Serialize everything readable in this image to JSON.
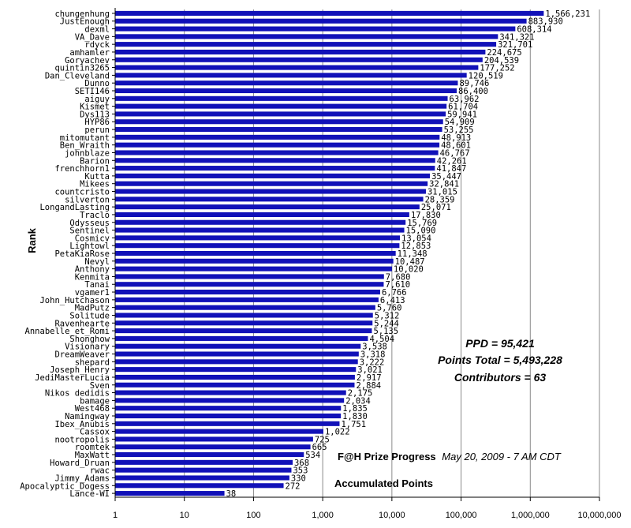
{
  "chart_data": {
    "type": "bar",
    "orientation": "horizontal",
    "xscale": "log",
    "xlim": [
      1,
      10000000
    ],
    "x_ticks": [
      "1",
      "10",
      "100",
      "1,000",
      "10,000",
      "100,000",
      "1,000,000",
      "10,000,000"
    ],
    "ylabel": "Rank",
    "xlabel": "Accumulated Points",
    "bar_color": "#1111b8",
    "grid": "vertical",
    "stats": {
      "ppd": "PPD = 95,421",
      "points_total": "Points Total = 5,493,228",
      "contributors": "Contributors = 63"
    },
    "caption_bold": "F@H Prize Progress",
    "caption_italic": "May 20, 2009 - 7 AM CDT",
    "categories": [
      "chungenhung",
      "JustEnough",
      "dexml",
      "VA_Dave",
      "rdyck",
      "amhamler",
      "Goryachev",
      "quintin3265",
      "Dan_Cleveland",
      "Dunno",
      "SETI146",
      "aiguy",
      "Kismet",
      "Dys113",
      "HYP86",
      "perun",
      "mitomutant",
      "Ben_Wraith",
      "johnblaze",
      "Barion",
      "frenchhorn1",
      "Kutta",
      "Mikees",
      "countcristo",
      "silverton",
      "LongandLasting",
      "Traclo",
      "Odysseus",
      "Sentinel",
      "Cosmicv",
      "Lightowl",
      "PetaKiaRose",
      "Nevyl",
      "Anthony",
      "Kenmita",
      "Tanai",
      "vgamer1",
      "John_Hutchason",
      "MadPutz",
      "Solitude",
      "Ravenhearte",
      "Annabelle_et_Romi",
      "Shonghow",
      "Visionary",
      "DreamWeaver",
      "shepard",
      "Joseph_Henry",
      "JediMasterLucia",
      "Sven",
      "Nikos dedidis",
      "bamage",
      "West468",
      "Namingway",
      "Ibex_Anubis",
      "Cassox",
      "nootropolis",
      "roomtek",
      "MaxWatt",
      "Howard_Druan",
      "rwac",
      "Jimmy_Adams",
      "Apocalyptic_Dogess",
      "Lance-WI"
    ],
    "values": [
      1566231,
      883930,
      608314,
      341321,
      321701,
      224675,
      204539,
      177252,
      120519,
      89746,
      86400,
      63962,
      61704,
      59941,
      54909,
      53255,
      48913,
      48601,
      46767,
      42261,
      41847,
      35447,
      32841,
      31015,
      28359,
      25071,
      17830,
      15769,
      15090,
      13054,
      12853,
      11348,
      10487,
      10020,
      7680,
      7610,
      6766,
      6413,
      5760,
      5312,
      5244,
      5135,
      4504,
      3538,
      3318,
      3222,
      3021,
      2917,
      2884,
      2175,
      2034,
      1835,
      1830,
      1751,
      1022,
      725,
      665,
      534,
      368,
      353,
      330,
      272,
      38
    ],
    "value_labels": [
      "1,566,231",
      "883,930",
      "608,314",
      "341,321",
      "321,701",
      "224,675",
      "204,539",
      "177,252",
      "120,519",
      "89,746",
      "86,400",
      "63,962",
      "61,704",
      "59,941",
      "54,909",
      "53,255",
      "48,913",
      "48,601",
      "46,767",
      "42,261",
      "41,847",
      "35,447",
      "32,841",
      "31,015",
      "28,359",
      "25,071",
      "17,830",
      "15,769",
      "15,090",
      "13,054",
      "12,853",
      "11,348",
      "10,487",
      "10,020",
      "7,680",
      "7,610",
      "6,766",
      "6,413",
      "5,760",
      "5,312",
      "5,244",
      "5,135",
      "4,504",
      "3,538",
      "3,318",
      "3,222",
      "3,021",
      "2,917",
      "2,884",
      "2,175",
      "2,034",
      "1,835",
      "1,830",
      "1,751",
      "1,022",
      "725",
      "665",
      "534",
      "368",
      "353",
      "330",
      "272",
      "38"
    ]
  }
}
